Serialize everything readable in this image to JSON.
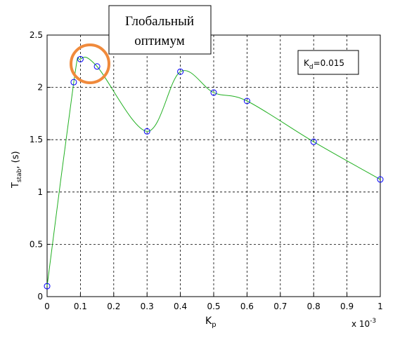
{
  "chart_data": {
    "type": "line",
    "x": [
      0,
      0.08,
      0.1,
      0.15,
      0.3,
      0.4,
      0.5,
      0.6,
      0.8,
      1.0
    ],
    "series": [
      {
        "color": "#22b022",
        "marker_color": "#0000ff",
        "values": [
          0.1,
          2.05,
          2.27,
          2.2,
          1.58,
          2.15,
          1.95,
          1.87,
          1.48,
          1.12
        ]
      }
    ],
    "xlim": [
      0,
      1
    ],
    "xticks": [
      0,
      0.1,
      0.2,
      0.3,
      0.4,
      0.5,
      0.6,
      0.7,
      0.8,
      0.9,
      1
    ],
    "ylim": [
      0,
      2.5
    ],
    "yticks": [
      0,
      0.5,
      1,
      1.5,
      2,
      2.5
    ],
    "grid": true,
    "xlabel": {
      "main": "K",
      "sub": "p"
    },
    "ylabel": {
      "main": "T",
      "sub": "stab",
      "rest": ", (s)"
    },
    "x_multiplier": {
      "base": "x 10",
      "exp": "-3"
    },
    "legend_text": {
      "main": "K",
      "sub": "d",
      "rest": "=0.015"
    },
    "annotation": [
      "Глобальный",
      "оптимум"
    ]
  }
}
